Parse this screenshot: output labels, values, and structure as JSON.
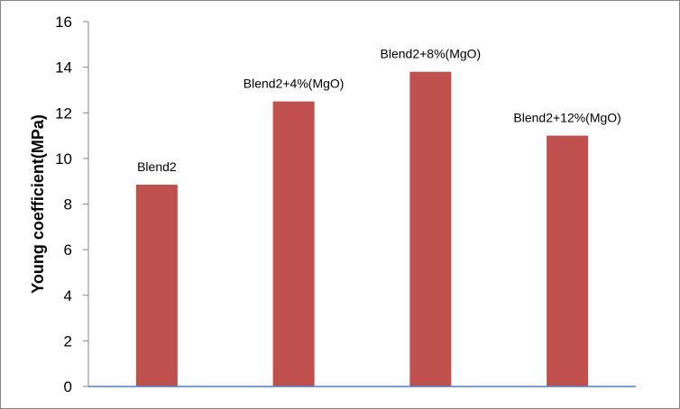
{
  "chart_data": {
    "type": "bar",
    "title": "",
    "xlabel": "",
    "ylabel": "Young coefficient(MPa)",
    "ylim": [
      0,
      16
    ],
    "yticks": [
      0,
      2,
      4,
      6,
      8,
      10,
      12,
      14,
      16
    ],
    "categories": [
      "Blend2",
      "Blend2+4%(MgO)",
      "Blend2+8%(MgO)",
      "Blend2+12%(MgO)"
    ],
    "values": [
      8.85,
      12.5,
      13.8,
      11.0
    ],
    "data_labels": [
      "Blend2",
      "Blend2+4%(MgO)",
      "Blend2+8%(MgO)",
      "Blend2+12%(MgO)"
    ],
    "grid": false,
    "legend": "none",
    "colors": {
      "bar": "#C0504D",
      "x_axis": "#4F81BD",
      "y_axis": "#868686"
    }
  }
}
